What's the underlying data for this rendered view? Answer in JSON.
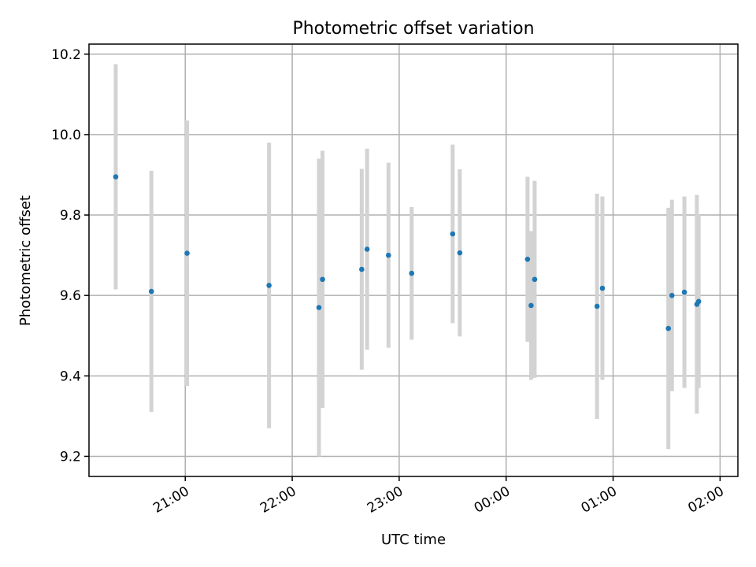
{
  "chart_data": {
    "type": "scatter",
    "title": "Photometric offset variation",
    "xlabel": "UTC time",
    "ylabel": "Photometric offset",
    "x_is_time": true,
    "xlim": [
      "20:06",
      "02:10"
    ],
    "ylim": [
      9.15,
      10.225
    ],
    "y_ticks": [
      9.2,
      9.4,
      9.6,
      9.8,
      10.0,
      10.2
    ],
    "x_ticks": [
      "21:00",
      "22:00",
      "23:00",
      "00:00",
      "01:00",
      "02:00"
    ],
    "grid": true,
    "colors": {
      "point": "#1f77b4",
      "errorbar": "#d3d3d3"
    },
    "points": [
      {
        "x": "20:21",
        "y": 9.895,
        "err": 0.28
      },
      {
        "x": "20:41",
        "y": 9.61,
        "err": 0.3
      },
      {
        "x": "21:01",
        "y": 9.705,
        "err": 0.33
      },
      {
        "x": "21:47",
        "y": 9.625,
        "err": 0.355
      },
      {
        "x": "22:15",
        "y": 9.57,
        "err": 0.37
      },
      {
        "x": "22:17",
        "y": 9.64,
        "err": 0.32
      },
      {
        "x": "22:39",
        "y": 9.665,
        "err": 0.25
      },
      {
        "x": "22:42",
        "y": 9.715,
        "err": 0.25
      },
      {
        "x": "22:54",
        "y": 9.7,
        "err": 0.23
      },
      {
        "x": "23:07",
        "y": 9.655,
        "err": 0.165
      },
      {
        "x": "23:30",
        "y": 9.753,
        "err": 0.222
      },
      {
        "x": "23:34",
        "y": 9.706,
        "err": 0.208
      },
      {
        "x": "00:12",
        "y": 9.69,
        "err": 0.205
      },
      {
        "x": "00:14",
        "y": 9.575,
        "err": 0.185
      },
      {
        "x": "00:16",
        "y": 9.64,
        "err": 0.245
      },
      {
        "x": "00:51",
        "y": 9.573,
        "err": 0.28
      },
      {
        "x": "00:54",
        "y": 9.618,
        "err": 0.228
      },
      {
        "x": "01:31",
        "y": 9.518,
        "err": 0.3
      },
      {
        "x": "01:33",
        "y": 9.6,
        "err": 0.238
      },
      {
        "x": "01:40",
        "y": 9.608,
        "err": 0.238
      },
      {
        "x": "01:47",
        "y": 9.578,
        "err": 0.272
      },
      {
        "x": "01:48",
        "y": 9.585,
        "err": 0.215
      }
    ]
  }
}
